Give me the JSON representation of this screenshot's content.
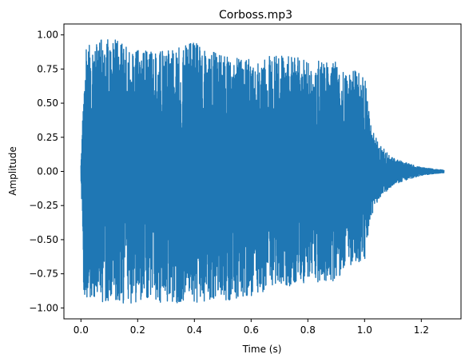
{
  "chart_data": {
    "type": "line",
    "title": "Corboss.mp3",
    "xlabel": "Time (s)",
    "ylabel": "Amplitude",
    "xlim": [
      -0.06,
      1.34
    ],
    "ylim": [
      -1.08,
      1.08
    ],
    "x_ticks": [
      0.0,
      0.2,
      0.4,
      0.6,
      0.8,
      1.0,
      1.2
    ],
    "x_tick_labels": [
      "0.0",
      "0.2",
      "0.4",
      "0.6",
      "0.8",
      "1.0",
      "1.2"
    ],
    "y_ticks": [
      1.0,
      0.75,
      0.5,
      0.25,
      0.0,
      -0.25,
      -0.5,
      -0.75,
      -1.0
    ],
    "y_tick_labels": [
      "1.00",
      "0.75",
      "0.50",
      "0.25",
      "0.00",
      "−0.25",
      "−0.50",
      "−0.75",
      "−1.00"
    ],
    "grid": false,
    "series": [
      {
        "color": "#1f77b4",
        "duration": 1.28,
        "envelope": {
          "t": [
            0.0,
            0.005,
            0.01,
            0.02,
            0.05,
            0.1,
            0.2,
            0.3,
            0.4,
            0.5,
            0.6,
            0.7,
            0.8,
            0.9,
            0.95,
            1.0,
            1.02,
            1.05,
            1.1,
            1.15,
            1.2,
            1.25,
            1.28
          ],
          "max": [
            0.05,
            0.3,
            0.75,
            0.95,
            0.96,
            0.98,
            0.9,
            0.88,
            0.97,
            0.85,
            0.82,
            0.86,
            0.82,
            0.8,
            0.75,
            0.72,
            0.35,
            0.2,
            0.1,
            0.06,
            0.03,
            0.015,
            0.01
          ],
          "min": [
            -0.05,
            -0.4,
            -0.92,
            -0.92,
            -0.94,
            -0.98,
            -0.97,
            -0.97,
            -0.96,
            -0.95,
            -0.92,
            -0.85,
            -0.82,
            -0.8,
            -0.7,
            -0.66,
            -0.35,
            -0.2,
            -0.1,
            -0.06,
            -0.03,
            -0.015,
            -0.01
          ]
        }
      }
    ]
  }
}
